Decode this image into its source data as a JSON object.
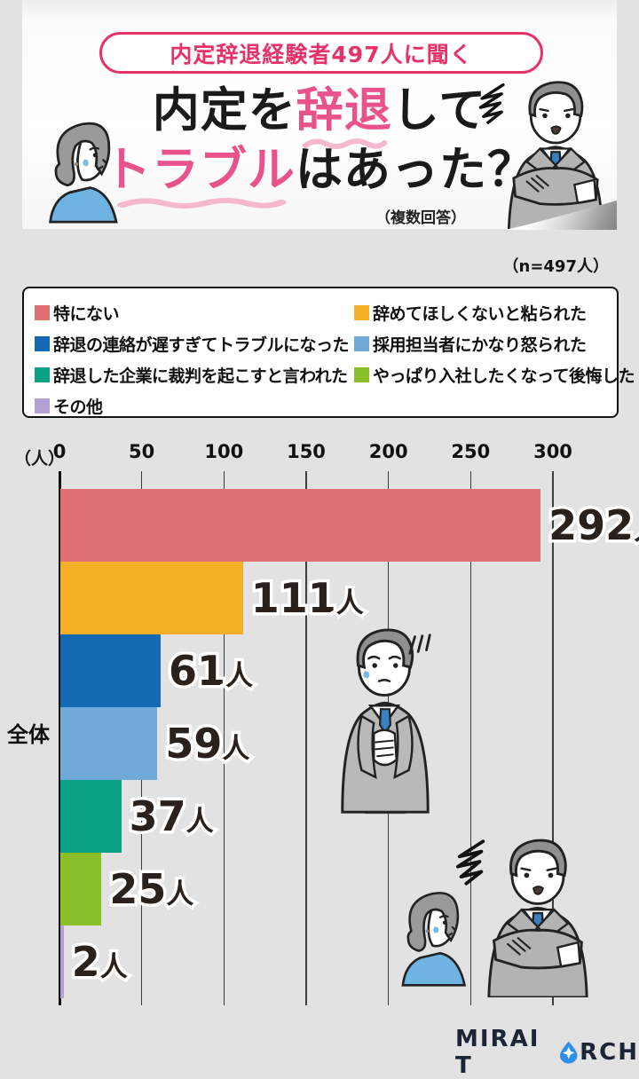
{
  "header": {
    "badge": "内定辞退経験者497人に聞く",
    "title": {
      "seg1": "内定を",
      "seg2": "辞退",
      "seg3": "して",
      "seg4": "トラブル",
      "seg5": "はあった？"
    },
    "note": "（複数回答）"
  },
  "sample_note": "（n=497人）",
  "legend": {
    "items": [
      {
        "label": "特にない",
        "color": "#e07073"
      },
      {
        "label": "辞めてほしくないと粘られた",
        "color": "#f4ae28"
      },
      {
        "label": "辞退の連絡が遅すぎてトラブルになった",
        "color": "#1569b3"
      },
      {
        "label": "採用担当者にかなり怒られた",
        "color": "#70aad8"
      },
      {
        "label": "辞退した企業に裁判を起こすと言われた",
        "color": "#0ba185"
      },
      {
        "label": "やっぱり入社したくなって後悔した",
        "color": "#8abe2a"
      },
      {
        "label": "その他",
        "color": "#b4a0d4"
      }
    ]
  },
  "chart_data": {
    "type": "bar",
    "orientation": "horizontal",
    "title": "内定を辞退してトラブルはあった？（複数回答）",
    "group_label": "全体",
    "unit_label": "（人）",
    "value_suffix": "人",
    "n": 497,
    "categories": [
      "特にない",
      "辞めてほしくないと粘られた",
      "辞退の連絡が遅すぎてトラブルになった",
      "採用担当者にかなり怒られた",
      "辞退した企業に裁判を起こすと言われた",
      "やっぱり入社したくなって後悔した",
      "その他"
    ],
    "values": [
      292,
      111,
      61,
      59,
      37,
      25,
      2
    ],
    "colors": [
      "#e07073",
      "#f4ae28",
      "#1569b3",
      "#70aad8",
      "#0ba185",
      "#8abe2a",
      "#b4a0d4"
    ],
    "xlim": [
      0,
      300
    ],
    "ticks": [
      0,
      50,
      100,
      150,
      200,
      250,
      300
    ],
    "grid": true,
    "legend_position": "top"
  },
  "footer": {
    "logo_left": "MIRAI T",
    "logo_right": "RCH",
    "logo_icon": "flame-icon"
  },
  "accent_colors": {
    "pink": "#e73267",
    "title_pink": "#e9538c",
    "squiggle_pink": "#f5b8cf"
  }
}
